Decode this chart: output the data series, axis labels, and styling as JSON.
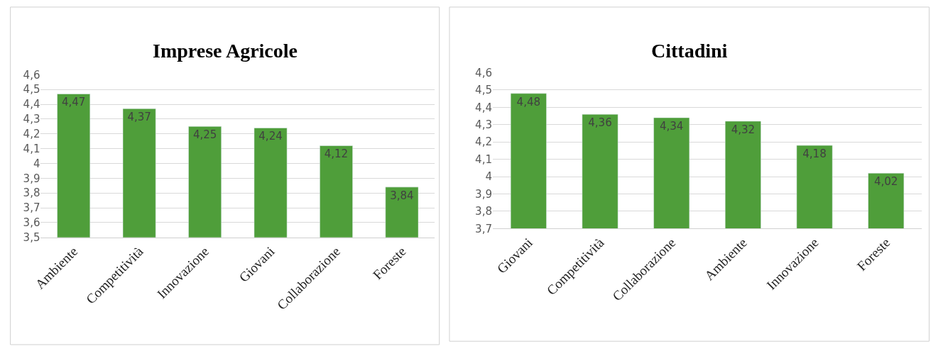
{
  "chart_data": [
    {
      "type": "bar",
      "title": "Imprese Agricole",
      "categories": [
        "Ambiente",
        "Competitività",
        "Innovazione",
        "Giovani",
        "Collaborazione",
        "Foreste"
      ],
      "series": [
        {
          "color": "#4f9e3a",
          "values": [
            4.47,
            4.37,
            4.25,
            4.24,
            4.12,
            3.84
          ],
          "value_labels": [
            "4,47",
            "4,37",
            "4,25",
            "4,24",
            "4,12",
            "3,84"
          ]
        }
      ],
      "ylim": [
        3.5,
        4.6
      ],
      "yticks": [
        {
          "value": 3.5,
          "label": "3,5"
        },
        {
          "value": 3.6,
          "label": "3,6"
        },
        {
          "value": 3.7,
          "label": "3,7"
        },
        {
          "value": 3.8,
          "label": "3,8"
        },
        {
          "value": 3.9,
          "label": "3,9"
        },
        4,
        {
          "value": 4.1,
          "label": "4,1"
        },
        {
          "value": 4.2,
          "label": "4,2"
        },
        {
          "value": 4.3,
          "label": "4,3"
        },
        {
          "value": 4.4,
          "label": "4,4"
        },
        {
          "value": 4.5,
          "label": "4,5"
        },
        {
          "value": 4.6,
          "label": "4,6"
        }
      ],
      "grid": "y"
    },
    {
      "type": "bar",
      "title": "Cittadini",
      "categories": [
        "Giovani",
        "Competitività",
        "Collaborazione",
        "Ambiente",
        "Innovazione",
        "Foreste"
      ],
      "series": [
        {
          "color": "#4f9e3a",
          "values": [
            4.48,
            4.36,
            4.34,
            4.32,
            4.18,
            4.02
          ],
          "value_labels": [
            "4,48",
            "4,36",
            "4,34",
            "4,32",
            "4,18",
            "4,02"
          ]
        }
      ],
      "ylim": [
        3.7,
        4.6
      ],
      "yticks": [
        {
          "value": 3.7,
          "label": "3,7"
        },
        {
          "value": 3.8,
          "label": "3,8"
        },
        {
          "value": 3.9,
          "label": "3,9"
        },
        4,
        {
          "value": 4.1,
          "label": "4,1"
        },
        {
          "value": 4.2,
          "label": "4,2"
        },
        {
          "value": 4.3,
          "label": "4,3"
        },
        {
          "value": 4.4,
          "label": "4,4"
        },
        {
          "value": 4.5,
          "label": "4,5"
        },
        {
          "value": 4.6,
          "label": "4,6"
        }
      ],
      "grid": "y"
    }
  ]
}
